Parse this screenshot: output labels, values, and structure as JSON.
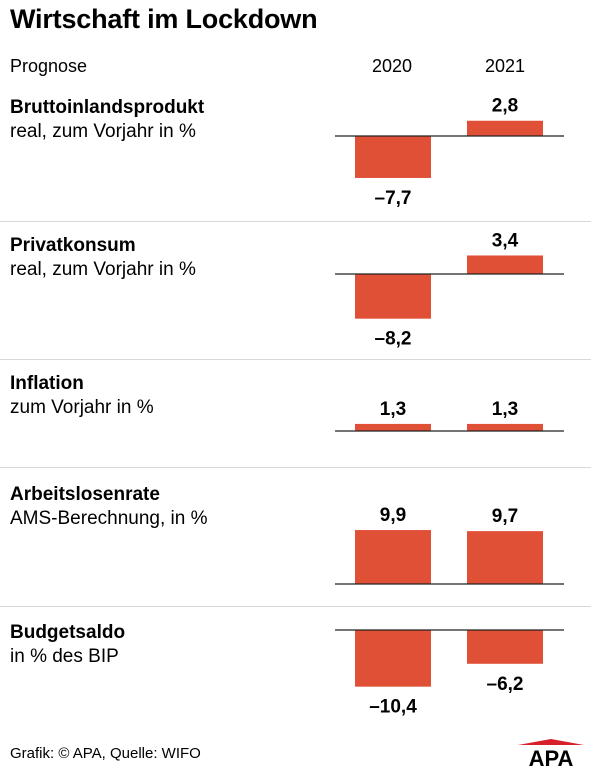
{
  "header": {
    "title": "Wirtschaft im Lockdown",
    "subtitle": "Prognose",
    "years": [
      "2020",
      "2021"
    ]
  },
  "colors": {
    "bar": "#e05037",
    "axis": "#222222",
    "divider": "#d8d8d8"
  },
  "chart_data": [
    {
      "type": "bar",
      "title": "Bruttoinlandsprodukt",
      "subtitle": "real, zum Vorjahr in %",
      "categories": [
        "2020",
        "2021"
      ],
      "values": [
        -7.7,
        2.8
      ],
      "labels": [
        "–7,7",
        "2,8"
      ]
    },
    {
      "type": "bar",
      "title": "Privatkonsum",
      "subtitle": "real, zum Vorjahr in %",
      "categories": [
        "2020",
        "2021"
      ],
      "values": [
        -8.2,
        3.4
      ],
      "labels": [
        "–8,2",
        "3,4"
      ]
    },
    {
      "type": "bar",
      "title": "Inflation",
      "subtitle": "zum Vorjahr in %",
      "categories": [
        "2020",
        "2021"
      ],
      "values": [
        1.3,
        1.3
      ],
      "labels": [
        "1,3",
        "1,3"
      ]
    },
    {
      "type": "bar",
      "title": "Arbeitslosenrate",
      "subtitle": "AMS-Berechnung, in %",
      "categories": [
        "2020",
        "2021"
      ],
      "values": [
        9.9,
        9.7
      ],
      "labels": [
        "9,9",
        "9,7"
      ]
    },
    {
      "type": "bar",
      "title": "Budgetsaldo",
      "subtitle": "in % des BIP",
      "categories": [
        "2020",
        "2021"
      ],
      "values": [
        -10.4,
        -6.2
      ],
      "labels": [
        "–10,4",
        "–6,2"
      ]
    }
  ],
  "footer": {
    "source": "Grafik: © APA, Quelle: WIFO"
  },
  "logo": {
    "text": "APA"
  }
}
